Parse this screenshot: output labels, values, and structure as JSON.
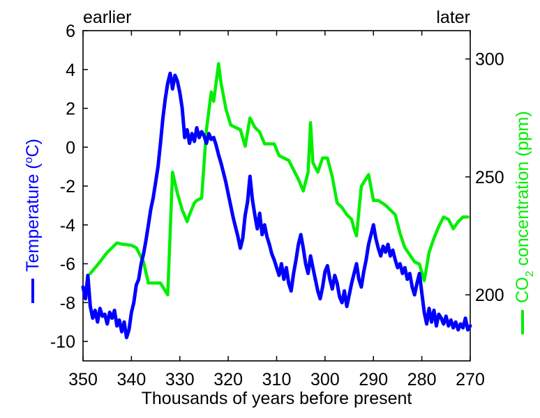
{
  "chart_data": {
    "type": "line",
    "corner_labels": {
      "left": "earlier",
      "right": "later"
    },
    "xlabel": "Thousands of years before present",
    "xlim": [
      350,
      270
    ],
    "x_ticks": [
      350,
      340,
      330,
      320,
      310,
      300,
      290,
      280,
      270
    ],
    "y_left": {
      "label": "Temperature (",
      "label_sup": "o",
      "label_end": "C)",
      "lim": [
        -11,
        6
      ],
      "ticks": [
        6,
        4,
        2,
        0,
        -2,
        -4,
        -6,
        -8,
        -10
      ],
      "color": "#0000ff"
    },
    "y_right": {
      "label": "CO",
      "label_sub": "2",
      "label_end": " concentration (ppm)",
      "lim": [
        172,
        312
      ],
      "ticks": [
        300,
        250,
        200
      ],
      "color": "#00ee00"
    },
    "grid": false,
    "series": [
      {
        "axis": "left",
        "color": "#0000ff",
        "points": [
          [
            350,
            -7.2
          ],
          [
            349.5,
            -7.8
          ],
          [
            349,
            -6.6
          ],
          [
            348.5,
            -8.2
          ],
          [
            348,
            -8.8
          ],
          [
            347.5,
            -8.4
          ],
          [
            347,
            -9.0
          ],
          [
            346.5,
            -8.3
          ],
          [
            346,
            -8.7
          ],
          [
            345.5,
            -8.6
          ],
          [
            345,
            -9.1
          ],
          [
            344.5,
            -8.5
          ],
          [
            344,
            -8.8
          ],
          [
            343.5,
            -8.4
          ],
          [
            343,
            -9.2
          ],
          [
            342.5,
            -8.9
          ],
          [
            342,
            -9.5
          ],
          [
            341.5,
            -9.0
          ],
          [
            341,
            -9.8
          ],
          [
            340.5,
            -9.4
          ],
          [
            340,
            -8.5
          ],
          [
            339.5,
            -8.0
          ],
          [
            339,
            -7.1
          ],
          [
            338.5,
            -6.8
          ],
          [
            338,
            -6.0
          ],
          [
            337.5,
            -5.5
          ],
          [
            337,
            -4.8
          ],
          [
            336.5,
            -4.0
          ],
          [
            336,
            -3.2
          ],
          [
            335.5,
            -2.6
          ],
          [
            335,
            -1.8
          ],
          [
            334.5,
            -1.0
          ],
          [
            334,
            0.2
          ],
          [
            333.5,
            1.5
          ],
          [
            333,
            2.5
          ],
          [
            332.5,
            3.3
          ],
          [
            332,
            3.8
          ],
          [
            331.5,
            3.0
          ],
          [
            331,
            3.7
          ],
          [
            330.5,
            3.4
          ],
          [
            330,
            2.8
          ],
          [
            329.5,
            2.0
          ],
          [
            329,
            0.5
          ],
          [
            328.5,
            0.9
          ],
          [
            328,
            0.2
          ],
          [
            327.5,
            0.7
          ],
          [
            327,
            0.3
          ],
          [
            326.5,
            1.0
          ],
          [
            326,
            0.5
          ],
          [
            325.5,
            0.8
          ],
          [
            325,
            0.6
          ],
          [
            324.5,
            0.2
          ],
          [
            324,
            0.7
          ],
          [
            323.5,
            0.4
          ],
          [
            323,
            0.5
          ],
          [
            322.5,
            0.1
          ],
          [
            322,
            -0.4
          ],
          [
            321.5,
            -0.8
          ],
          [
            321,
            -1.3
          ],
          [
            320.5,
            -1.8
          ],
          [
            320,
            -2.4
          ],
          [
            319.5,
            -3.0
          ],
          [
            319,
            -3.6
          ],
          [
            318.5,
            -4.1
          ],
          [
            318,
            -4.6
          ],
          [
            317.5,
            -5.2
          ],
          [
            317,
            -4.7
          ],
          [
            316.5,
            -3.5
          ],
          [
            316,
            -2.8
          ],
          [
            315.5,
            -1.5
          ],
          [
            315,
            -2.7
          ],
          [
            314.5,
            -3.5
          ],
          [
            314,
            -4.2
          ],
          [
            313.5,
            -3.4
          ],
          [
            313,
            -4.5
          ],
          [
            312.5,
            -4.0
          ],
          [
            312,
            -4.6
          ],
          [
            311.5,
            -5.0
          ],
          [
            311,
            -5.5
          ],
          [
            310.5,
            -5.8
          ],
          [
            310,
            -6.2
          ],
          [
            309.5,
            -6.6
          ],
          [
            309,
            -6.0
          ],
          [
            308.5,
            -6.8
          ],
          [
            308,
            -6.2
          ],
          [
            307.5,
            -7.0
          ],
          [
            307,
            -7.4
          ],
          [
            306.5,
            -6.5
          ],
          [
            306,
            -5.8
          ],
          [
            305.5,
            -5.0
          ],
          [
            305,
            -4.5
          ],
          [
            304.5,
            -5.2
          ],
          [
            304,
            -6.0
          ],
          [
            303.5,
            -6.5
          ],
          [
            303,
            -5.6
          ],
          [
            302.5,
            -6.2
          ],
          [
            302,
            -6.8
          ],
          [
            301.5,
            -7.4
          ],
          [
            301,
            -7.8
          ],
          [
            300.5,
            -7.2
          ],
          [
            300,
            -6.4
          ],
          [
            299.5,
            -6.1
          ],
          [
            299,
            -6.8
          ],
          [
            298.5,
            -7.3
          ],
          [
            298,
            -6.6
          ],
          [
            297.5,
            -7.0
          ],
          [
            297,
            -7.7
          ],
          [
            296.5,
            -8.0
          ],
          [
            296,
            -7.4
          ],
          [
            295.5,
            -8.2
          ],
          [
            295,
            -7.6
          ],
          [
            294.5,
            -7.0
          ],
          [
            294,
            -6.5
          ],
          [
            293.5,
            -6.0
          ],
          [
            293,
            -6.8
          ],
          [
            292.5,
            -7.2
          ],
          [
            292,
            -6.4
          ],
          [
            291.5,
            -5.8
          ],
          [
            291,
            -5.0
          ],
          [
            290.5,
            -4.5
          ],
          [
            290,
            -4.0
          ],
          [
            289.5,
            -4.7
          ],
          [
            289,
            -5.2
          ],
          [
            288.5,
            -5.6
          ],
          [
            288,
            -5.1
          ],
          [
            287.5,
            -5.4
          ],
          [
            287,
            -5.0
          ],
          [
            286.5,
            -5.6
          ],
          [
            286,
            -5.3
          ],
          [
            285.5,
            -5.8
          ],
          [
            285,
            -6.2
          ],
          [
            284.5,
            -6.0
          ],
          [
            284,
            -6.5
          ],
          [
            283.5,
            -6.2
          ],
          [
            283,
            -6.8
          ],
          [
            282.5,
            -6.5
          ],
          [
            282,
            -7.2
          ],
          [
            281.5,
            -7.6
          ],
          [
            281,
            -7.0
          ],
          [
            280.5,
            -6.5
          ],
          [
            280,
            -7.5
          ],
          [
            279.5,
            -8.5
          ],
          [
            279,
            -9.1
          ],
          [
            278.5,
            -8.3
          ],
          [
            278,
            -9.0
          ],
          [
            277.5,
            -8.4
          ],
          [
            277,
            -9.2
          ],
          [
            276.5,
            -8.6
          ],
          [
            276,
            -8.8
          ],
          [
            275.5,
            -9.1
          ],
          [
            275,
            -8.7
          ],
          [
            274.5,
            -9.2
          ],
          [
            274,
            -8.9
          ],
          [
            273.5,
            -9.3
          ],
          [
            273,
            -9.0
          ],
          [
            272.5,
            -9.4
          ],
          [
            272,
            -9.1
          ],
          [
            271.5,
            -9.3
          ],
          [
            271,
            -8.8
          ],
          [
            270.5,
            -9.4
          ],
          [
            270,
            -9.2
          ]
        ]
      },
      {
        "axis": "right",
        "color": "#00ee00",
        "points": [
          [
            348.5,
            209
          ],
          [
            346.5,
            214
          ],
          [
            345,
            218
          ],
          [
            343,
            222
          ],
          [
            342,
            221.5
          ],
          [
            340,
            221
          ],
          [
            339,
            220
          ],
          [
            337.5,
            214
          ],
          [
            336.5,
            205
          ],
          [
            335.5,
            205
          ],
          [
            334,
            205
          ],
          [
            332.5,
            200
          ],
          [
            331.5,
            252
          ],
          [
            330.5,
            243
          ],
          [
            329.5,
            236
          ],
          [
            328.5,
            231
          ],
          [
            328,
            234
          ],
          [
            327,
            239
          ],
          [
            326.5,
            240
          ],
          [
            325.5,
            241
          ],
          [
            324.5,
            270
          ],
          [
            323.5,
            286
          ],
          [
            323,
            282
          ],
          [
            322,
            298
          ],
          [
            321.5,
            290
          ],
          [
            320.5,
            279
          ],
          [
            319.5,
            272
          ],
          [
            318.5,
            271
          ],
          [
            317.5,
            270
          ],
          [
            316.5,
            263
          ],
          [
            315.5,
            275
          ],
          [
            314.5,
            271
          ],
          [
            313.5,
            269
          ],
          [
            312.5,
            264
          ],
          [
            311.5,
            264
          ],
          [
            310.5,
            264
          ],
          [
            309.5,
            259
          ],
          [
            308.5,
            258
          ],
          [
            307.5,
            257
          ],
          [
            306.5,
            253
          ],
          [
            305.5,
            249
          ],
          [
            304.5,
            244
          ],
          [
            303.5,
            252
          ],
          [
            303,
            273
          ],
          [
            302.5,
            256
          ],
          [
            301.5,
            252
          ],
          [
            300.5,
            258
          ],
          [
            299.5,
            258
          ],
          [
            298.5,
            250
          ],
          [
            297.5,
            239
          ],
          [
            296.5,
            237
          ],
          [
            295.5,
            234
          ],
          [
            294.5,
            232
          ],
          [
            294,
            228
          ],
          [
            293.5,
            225
          ],
          [
            292.5,
            246
          ],
          [
            291,
            251
          ],
          [
            290,
            240
          ],
          [
            289,
            240
          ],
          [
            287.5,
            238
          ],
          [
            286.5,
            236
          ],
          [
            285.5,
            234
          ],
          [
            284.5,
            226
          ],
          [
            283.5,
            220
          ],
          [
            282.5,
            217
          ],
          [
            281.5,
            214
          ],
          [
            280.5,
            213
          ],
          [
            279.5,
            206
          ],
          [
            278.5,
            218
          ],
          [
            277.5,
            224
          ],
          [
            276.5,
            229
          ],
          [
            275.5,
            233
          ],
          [
            274.5,
            232
          ],
          [
            273.5,
            228
          ],
          [
            272.5,
            231
          ],
          [
            271.5,
            233
          ],
          [
            270.5,
            233
          ]
        ]
      }
    ]
  }
}
